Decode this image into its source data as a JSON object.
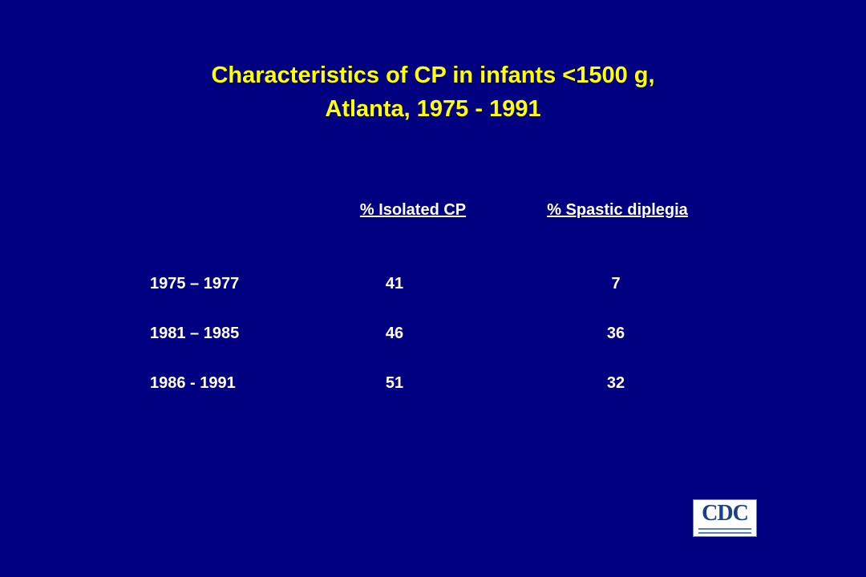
{
  "title": [
    "Characteristics of CP in infants <1500 g,",
    "Atlanta, 1975 - 1991"
  ],
  "table": {
    "headers": [
      "% Isolated CP",
      "% Spastic diplegia"
    ],
    "rows": [
      [
        "1975 – 1977",
        41,
        7
      ],
      [
        "1981 – 1985",
        46,
        36
      ],
      [
        "1986 - 1991",
        51,
        32
      ]
    ]
  },
  "logo": "CDC"
}
